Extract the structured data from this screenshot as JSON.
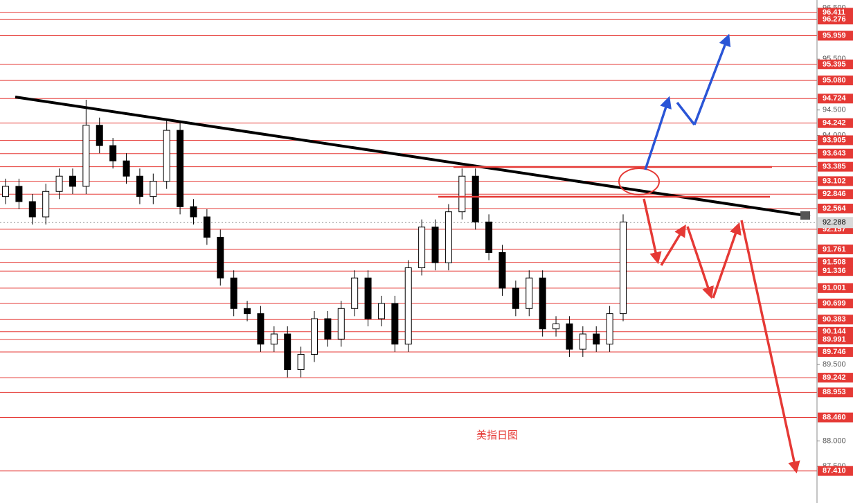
{
  "chart_data": {
    "type": "candlestick",
    "annotation": "美指日图",
    "open": [
      92.8,
      93.0,
      92.7,
      92.4,
      92.9,
      93.2,
      93.0,
      94.2,
      93.8,
      93.5,
      93.2,
      92.8,
      93.1,
      94.1,
      92.6,
      92.4,
      92.0,
      91.2,
      90.6,
      90.5,
      89.9,
      90.1,
      89.4,
      89.7,
      90.4,
      90.0,
      90.6,
      91.2,
      90.4,
      90.7,
      89.9,
      91.4,
      92.2,
      91.5,
      92.5,
      93.2,
      92.3,
      91.7,
      91.0,
      90.6,
      91.2,
      90.2,
      90.3,
      89.8,
      90.1,
      89.9,
      90.5
    ],
    "high": [
      93.15,
      93.15,
      92.85,
      93.05,
      93.35,
      93.35,
      94.7,
      94.35,
      93.95,
      93.65,
      93.35,
      93.25,
      94.3,
      94.25,
      92.75,
      92.55,
      92.15,
      91.35,
      90.75,
      90.65,
      90.25,
      90.25,
      89.85,
      90.55,
      90.55,
      90.75,
      91.35,
      91.35,
      90.85,
      90.85,
      91.55,
      92.35,
      92.35,
      92.65,
      93.35,
      93.35,
      92.45,
      91.85,
      91.15,
      91.35,
      91.35,
      90.45,
      90.45,
      90.25,
      90.25,
      90.65,
      92.45
    ],
    "low": [
      92.65,
      92.55,
      92.25,
      92.25,
      92.75,
      92.85,
      92.85,
      93.65,
      93.35,
      93.05,
      92.65,
      92.65,
      92.95,
      92.45,
      92.25,
      91.85,
      91.05,
      90.45,
      90.35,
      89.75,
      89.75,
      89.25,
      89.25,
      89.55,
      89.85,
      89.85,
      90.45,
      90.25,
      90.25,
      89.75,
      89.75,
      91.25,
      91.35,
      91.35,
      92.35,
      92.15,
      91.55,
      90.85,
      90.45,
      90.45,
      90.05,
      90.05,
      89.65,
      89.65,
      89.75,
      89.75,
      90.35
    ],
    "close": [
      93.0,
      92.7,
      92.4,
      92.9,
      93.2,
      93.0,
      94.2,
      93.8,
      93.5,
      93.2,
      92.8,
      93.1,
      94.1,
      92.6,
      92.4,
      92.0,
      91.2,
      90.6,
      90.5,
      89.9,
      90.1,
      89.4,
      89.7,
      90.4,
      90.0,
      90.6,
      91.2,
      90.4,
      90.7,
      89.9,
      91.4,
      92.2,
      91.5,
      92.5,
      93.2,
      92.3,
      91.7,
      91.0,
      90.6,
      91.2,
      90.2,
      90.3,
      89.8,
      90.1,
      89.9,
      90.5,
      92.3
    ],
    "up_color": "#ffffff",
    "down_color": "#000000",
    "level_color": "#e53935",
    "ylim": [
      86.78,
      96.66
    ],
    "yticks": [
      {
        "value": 96.5,
        "label": "96.500"
      },
      {
        "value": 95.5,
        "label": "95.500"
      },
      {
        "value": 94.5,
        "label": "94.500"
      },
      {
        "value": 94.0,
        "label": "94.000"
      },
      {
        "value": 89.5,
        "label": "89.500"
      },
      {
        "value": 88.0,
        "label": "88.000"
      },
      {
        "value": 87.5,
        "label": "87.500"
      }
    ],
    "levels": [
      {
        "value": 96.411,
        "label": "96.411"
      },
      {
        "value": 96.276,
        "label": "96.276"
      },
      {
        "value": 95.959,
        "label": "95.959"
      },
      {
        "value": 95.395,
        "label": "95.395"
      },
      {
        "value": 95.08,
        "label": "95.080"
      },
      {
        "value": 94.724,
        "label": "94.724"
      },
      {
        "value": 94.242,
        "label": "94.242"
      },
      {
        "value": 93.905,
        "label": "93.905"
      },
      {
        "value": 93.643,
        "label": "93.643"
      },
      {
        "value": 93.385,
        "label": "93.385"
      },
      {
        "value": 93.102,
        "label": "93.102"
      },
      {
        "value": 92.846,
        "label": "92.846"
      },
      {
        "value": 92.564,
        "label": "92.564"
      },
      {
        "value": 92.157,
        "label": "92.157"
      },
      {
        "value": 91.761,
        "label": "91.761"
      },
      {
        "value": 91.508,
        "label": "91.508"
      },
      {
        "value": 91.336,
        "label": "91.336"
      },
      {
        "value": 91.001,
        "label": "91.001"
      },
      {
        "value": 90.699,
        "label": "90.699"
      },
      {
        "value": 90.383,
        "label": "90.383"
      },
      {
        "value": 90.144,
        "label": "90.144"
      },
      {
        "value": 89.991,
        "label": "89.991"
      },
      {
        "value": 89.746,
        "label": "89.746"
      },
      {
        "value": 89.242,
        "label": "89.242"
      },
      {
        "value": 88.953,
        "label": "88.953"
      },
      {
        "value": 88.46,
        "label": "88.460"
      },
      {
        "value": 87.41,
        "label": "87.410"
      }
    ],
    "last_price": {
      "value": 92.288,
      "label": "92.288"
    }
  }
}
